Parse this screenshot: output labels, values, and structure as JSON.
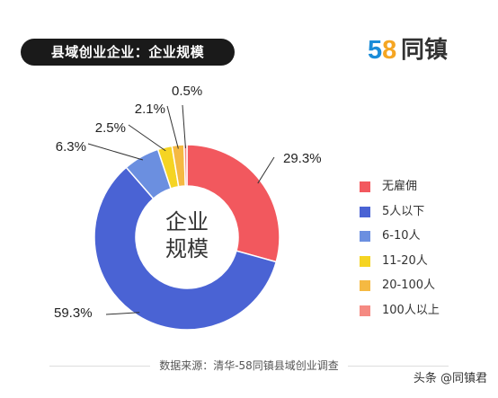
{
  "title": "县域创业企业：企业规模",
  "logo": {
    "digit5": "5",
    "digit8": "8",
    "text": "同镇"
  },
  "chart_data": {
    "type": "pie",
    "variant": "donut",
    "center_label_line1": "企业",
    "center_label_line2": "规模",
    "categories": [
      "无雇佣",
      "5人以下",
      "6-10人",
      "11-20人",
      "20-100人",
      "100人以上"
    ],
    "values": [
      29.3,
      59.3,
      6.3,
      2.5,
      2.1,
      0.5
    ],
    "value_labels": [
      "29.3%",
      "59.3%",
      "6.3%",
      "2.5%",
      "2.1%",
      "0.5%"
    ],
    "colors": [
      "#f2585e",
      "#4a63d4",
      "#6b8fe0",
      "#f5d423",
      "#f5b942",
      "#f58a82"
    ],
    "legend_position": "right"
  },
  "footer": {
    "source": "数据来源：清华-58同镇县域创业调查"
  },
  "watermark": "头条 @同镇君"
}
